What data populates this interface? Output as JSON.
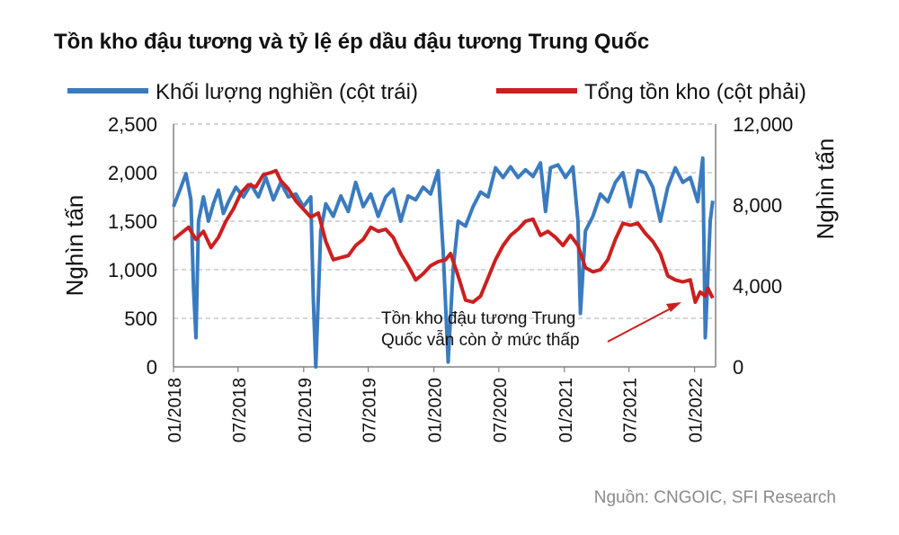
{
  "chart_data": {
    "type": "line",
    "title": "Tồn kho đậu tương và tỷ lệ ép dầu đậu tương Trung Quốc",
    "ylabel": "Nghìn tấn",
    "y2label": "Nghìn tấn",
    "ylim": [
      0,
      2500
    ],
    "y2lim": [
      0,
      12000
    ],
    "yticks": [
      "0",
      "500",
      "1,000",
      "1,500",
      "2,000",
      "2,500"
    ],
    "y2ticks": [
      "0",
      "4,000",
      "8,000",
      "12,000"
    ],
    "xticks": [
      "01/2018",
      "07/2018",
      "01/2019",
      "07/2019",
      "01/2020",
      "07/2020",
      "01/2021",
      "07/2021",
      "01/2022"
    ],
    "xlim": [
      "2018-01-01",
      "2022-03-01"
    ],
    "grid": true,
    "legend_position": "top",
    "annotation": [
      "Tồn kho đậu tương Trung",
      "Quốc vẫn còn ở mức thấp"
    ],
    "series": [
      {
        "name": "Khối lượng nghiền (cột trái)",
        "axis": "left",
        "color": "#3a7bbf",
        "points": [
          [
            "2018-01-01",
            1650
          ],
          [
            "2018-01-22",
            1850
          ],
          [
            "2018-02-05",
            1990
          ],
          [
            "2018-02-19",
            1720
          ],
          [
            "2018-02-26",
            820
          ],
          [
            "2018-03-05",
            300
          ],
          [
            "2018-03-12",
            1500
          ],
          [
            "2018-03-26",
            1750
          ],
          [
            "2018-04-09",
            1500
          ],
          [
            "2018-04-23",
            1680
          ],
          [
            "2018-05-07",
            1820
          ],
          [
            "2018-05-21",
            1580
          ],
          [
            "2018-06-04",
            1700
          ],
          [
            "2018-06-25",
            1850
          ],
          [
            "2018-07-16",
            1750
          ],
          [
            "2018-08-06",
            1880
          ],
          [
            "2018-08-27",
            1750
          ],
          [
            "2018-09-17",
            1950
          ],
          [
            "2018-10-08",
            1720
          ],
          [
            "2018-10-29",
            1900
          ],
          [
            "2018-11-19",
            1750
          ],
          [
            "2018-12-10",
            1780
          ],
          [
            "2018-12-31",
            1650
          ],
          [
            "2019-01-21",
            1750
          ],
          [
            "2019-01-28",
            700
          ],
          [
            "2019-02-04",
            0
          ],
          [
            "2019-02-18",
            1400
          ],
          [
            "2019-03-04",
            1680
          ],
          [
            "2019-03-25",
            1550
          ],
          [
            "2019-04-15",
            1760
          ],
          [
            "2019-05-06",
            1600
          ],
          [
            "2019-05-27",
            1900
          ],
          [
            "2019-06-17",
            1650
          ],
          [
            "2019-07-08",
            1780
          ],
          [
            "2019-07-29",
            1550
          ],
          [
            "2019-08-19",
            1750
          ],
          [
            "2019-09-09",
            1830
          ],
          [
            "2019-09-30",
            1500
          ],
          [
            "2019-10-21",
            1760
          ],
          [
            "2019-11-11",
            1720
          ],
          [
            "2019-12-02",
            1850
          ],
          [
            "2019-12-23",
            1780
          ],
          [
            "2020-01-13",
            2020
          ],
          [
            "2020-01-27",
            1200
          ],
          [
            "2020-02-10",
            50
          ],
          [
            "2020-02-24",
            1000
          ],
          [
            "2020-03-09",
            1500
          ],
          [
            "2020-03-30",
            1450
          ],
          [
            "2020-04-20",
            1650
          ],
          [
            "2020-05-11",
            1800
          ],
          [
            "2020-06-01",
            1750
          ],
          [
            "2020-06-22",
            2050
          ],
          [
            "2020-07-13",
            1950
          ],
          [
            "2020-08-03",
            2060
          ],
          [
            "2020-08-24",
            1950
          ],
          [
            "2020-09-14",
            2030
          ],
          [
            "2020-10-05",
            1960
          ],
          [
            "2020-10-26",
            2100
          ],
          [
            "2020-11-09",
            1600
          ],
          [
            "2020-11-23",
            2050
          ],
          [
            "2020-12-14",
            2080
          ],
          [
            "2021-01-04",
            1950
          ],
          [
            "2021-01-25",
            2060
          ],
          [
            "2021-02-08",
            1500
          ],
          [
            "2021-02-15",
            550
          ],
          [
            "2021-03-01",
            1400
          ],
          [
            "2021-03-22",
            1550
          ],
          [
            "2021-04-12",
            1780
          ],
          [
            "2021-05-03",
            1700
          ],
          [
            "2021-05-24",
            1900
          ],
          [
            "2021-06-14",
            2000
          ],
          [
            "2021-07-05",
            1650
          ],
          [
            "2021-07-26",
            2020
          ],
          [
            "2021-08-16",
            2000
          ],
          [
            "2021-09-06",
            1850
          ],
          [
            "2021-09-27",
            1500
          ],
          [
            "2021-10-18",
            1850
          ],
          [
            "2021-11-08",
            2050
          ],
          [
            "2021-11-29",
            1900
          ],
          [
            "2021-12-20",
            1950
          ],
          [
            "2022-01-10",
            1700
          ],
          [
            "2022-01-24",
            2150
          ],
          [
            "2022-01-31",
            300
          ],
          [
            "2022-02-14",
            1500
          ],
          [
            "2022-02-21",
            1710
          ]
        ]
      },
      {
        "name": "Tổng tồn kho (cột phải)",
        "axis": "right",
        "color": "#cc1f1f",
        "points": [
          [
            "2018-01-01",
            6300
          ],
          [
            "2018-01-22",
            6600
          ],
          [
            "2018-02-12",
            6900
          ],
          [
            "2018-03-05",
            6300
          ],
          [
            "2018-03-26",
            6700
          ],
          [
            "2018-04-16",
            5900
          ],
          [
            "2018-05-07",
            6400
          ],
          [
            "2018-05-28",
            7200
          ],
          [
            "2018-06-18",
            7800
          ],
          [
            "2018-07-09",
            8600
          ],
          [
            "2018-07-30",
            9000
          ],
          [
            "2018-08-20",
            8900
          ],
          [
            "2018-09-10",
            9500
          ],
          [
            "2018-10-01",
            9600
          ],
          [
            "2018-10-15",
            9700
          ],
          [
            "2018-10-29",
            9200
          ],
          [
            "2018-11-19",
            8800
          ],
          [
            "2018-12-10",
            8200
          ],
          [
            "2018-12-31",
            7800
          ],
          [
            "2019-01-21",
            7400
          ],
          [
            "2019-02-11",
            7600
          ],
          [
            "2019-03-04",
            6200
          ],
          [
            "2019-03-25",
            5300
          ],
          [
            "2019-04-15",
            5400
          ],
          [
            "2019-05-06",
            5500
          ],
          [
            "2019-05-27",
            6000
          ],
          [
            "2019-06-17",
            6300
          ],
          [
            "2019-07-08",
            6900
          ],
          [
            "2019-07-29",
            6700
          ],
          [
            "2019-08-19",
            6800
          ],
          [
            "2019-09-09",
            6400
          ],
          [
            "2019-09-30",
            5600
          ],
          [
            "2019-10-21",
            5000
          ],
          [
            "2019-11-11",
            4300
          ],
          [
            "2019-12-02",
            4600
          ],
          [
            "2019-12-23",
            5000
          ],
          [
            "2020-01-13",
            5200
          ],
          [
            "2020-02-03",
            5300
          ],
          [
            "2020-02-17",
            5600
          ],
          [
            "2020-03-09",
            4500
          ],
          [
            "2020-03-30",
            3300
          ],
          [
            "2020-04-20",
            3200
          ],
          [
            "2020-05-11",
            3500
          ],
          [
            "2020-06-01",
            4400
          ],
          [
            "2020-06-22",
            5300
          ],
          [
            "2020-07-13",
            6000
          ],
          [
            "2020-08-03",
            6500
          ],
          [
            "2020-08-24",
            6800
          ],
          [
            "2020-09-14",
            7200
          ],
          [
            "2020-10-05",
            7300
          ],
          [
            "2020-10-26",
            6500
          ],
          [
            "2020-11-16",
            6700
          ],
          [
            "2020-12-07",
            6400
          ],
          [
            "2020-12-28",
            6000
          ],
          [
            "2021-01-18",
            6500
          ],
          [
            "2021-02-08",
            6000
          ],
          [
            "2021-03-01",
            4900
          ],
          [
            "2021-03-22",
            4700
          ],
          [
            "2021-04-12",
            4800
          ],
          [
            "2021-05-03",
            5300
          ],
          [
            "2021-05-24",
            6300
          ],
          [
            "2021-06-14",
            7100
          ],
          [
            "2021-07-05",
            7000
          ],
          [
            "2021-07-26",
            7100
          ],
          [
            "2021-08-16",
            6600
          ],
          [
            "2021-09-06",
            6200
          ],
          [
            "2021-09-27",
            5600
          ],
          [
            "2021-10-18",
            4500
          ],
          [
            "2021-11-08",
            4300
          ],
          [
            "2021-11-29",
            4200
          ],
          [
            "2021-12-20",
            4300
          ],
          [
            "2022-01-03",
            3200
          ],
          [
            "2022-01-17",
            3700
          ],
          [
            "2022-01-31",
            3500
          ],
          [
            "2022-02-07",
            3900
          ],
          [
            "2022-02-21",
            3400
          ]
        ]
      }
    ],
    "source": "Nguồn: CNGOIC, SFI Research"
  }
}
